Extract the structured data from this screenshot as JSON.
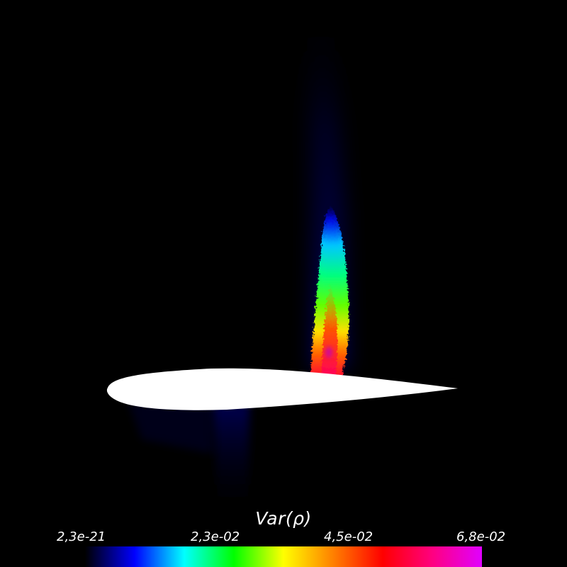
{
  "legend": {
    "title": "Var(ρ)",
    "tick_labels": [
      "2,3e-21",
      "2,3e-02",
      "4,5e-02",
      "6,8e-02"
    ],
    "colormap": [
      "#000000",
      "#0000ff",
      "#00ffff",
      "#00ff00",
      "#ffff00",
      "#ff8000",
      "#ff0000",
      "#ff0080",
      "#e000ff"
    ]
  },
  "scene": {
    "background_color": "#000000",
    "airfoil_color": "#ffffff"
  }
}
